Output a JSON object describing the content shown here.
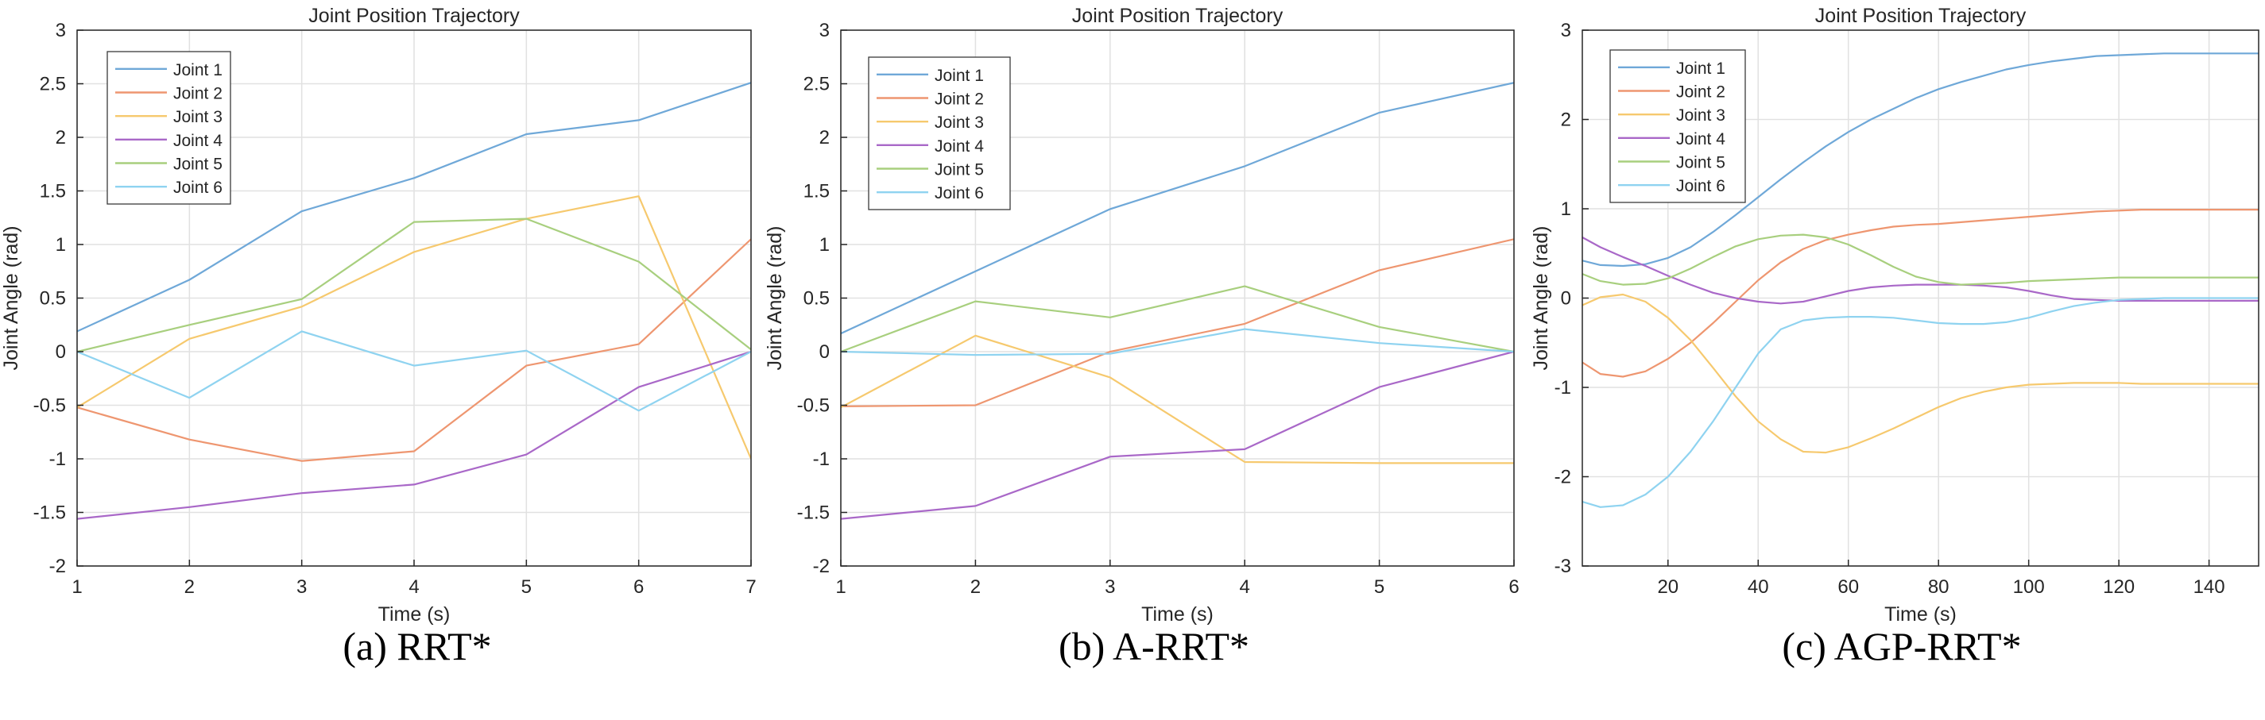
{
  "legend_labels": [
    "Joint 1",
    "Joint 2",
    "Joint 3",
    "Joint 4",
    "Joint 5",
    "Joint 6"
  ],
  "colors": {
    "joint1": "#6fa8d8",
    "joint2": "#ee9670",
    "joint3": "#f6c96e",
    "joint4": "#a968c8",
    "joint5": "#a8cf7e",
    "joint6": "#8fd3f0",
    "grid": "#e1e1e1",
    "axis": "#262626"
  },
  "chart_data": [
    {
      "type": "line",
      "caption": "(a) RRT*",
      "title": "Joint Position Trajectory",
      "xlabel": "Time (s)",
      "ylabel": "Joint Angle (rad)",
      "xlim": [
        1,
        7
      ],
      "ylim": [
        -2,
        3
      ],
      "xticks": [
        1,
        2,
        3,
        4,
        5,
        6,
        7
      ],
      "yticks": [
        -2,
        -1.5,
        -1,
        -0.5,
        0,
        0.5,
        1,
        1.5,
        2,
        2.5,
        3
      ],
      "grid": true,
      "legend_position": "top-left",
      "x": [
        1,
        2,
        3,
        4,
        5,
        6,
        7
      ],
      "series": [
        {
          "name": "Joint 1",
          "values": [
            0.19,
            0.67,
            1.31,
            1.62,
            2.03,
            2.16,
            2.51
          ]
        },
        {
          "name": "Joint 2",
          "values": [
            -0.52,
            -0.82,
            -1.02,
            -0.93,
            -0.13,
            0.07,
            1.05
          ]
        },
        {
          "name": "Joint 3",
          "values": [
            -0.52,
            0.12,
            0.42,
            0.93,
            1.24,
            1.45,
            -1.0
          ]
        },
        {
          "name": "Joint 4",
          "values": [
            -1.56,
            -1.45,
            -1.32,
            -1.24,
            -0.96,
            -0.33,
            0.0
          ]
        },
        {
          "name": "Joint 5",
          "values": [
            0.0,
            0.25,
            0.49,
            1.21,
            1.24,
            0.84,
            0.02
          ]
        },
        {
          "name": "Joint 6",
          "values": [
            0.0,
            -0.43,
            0.19,
            -0.13,
            0.01,
            -0.55,
            0.0
          ]
        }
      ]
    },
    {
      "type": "line",
      "caption": "(b) A-RRT*",
      "title": "Joint Position Trajectory",
      "xlabel": "Time (s)",
      "ylabel": "Joint Angle (rad)",
      "xlim": [
        1,
        6
      ],
      "ylim": [
        -2,
        3
      ],
      "xticks": [
        1,
        2,
        3,
        4,
        5,
        6
      ],
      "yticks": [
        -2,
        -1.5,
        -1,
        -0.5,
        0,
        0.5,
        1,
        1.5,
        2,
        2.5,
        3
      ],
      "grid": true,
      "legend_position": "top-left",
      "x": [
        1,
        2,
        3,
        4,
        5,
        6
      ],
      "series": [
        {
          "name": "Joint 1",
          "values": [
            0.17,
            0.75,
            1.33,
            1.73,
            2.23,
            2.51
          ]
        },
        {
          "name": "Joint 2",
          "values": [
            -0.51,
            -0.5,
            0.0,
            0.26,
            0.76,
            1.05
          ]
        },
        {
          "name": "Joint 3",
          "values": [
            -0.52,
            0.15,
            -0.24,
            -1.03,
            -1.04,
            -1.04
          ]
        },
        {
          "name": "Joint 4",
          "values": [
            -1.56,
            -1.44,
            -0.98,
            -0.91,
            -0.33,
            0.0
          ]
        },
        {
          "name": "Joint 5",
          "values": [
            0.0,
            0.47,
            0.32,
            0.61,
            0.23,
            0.0
          ]
        },
        {
          "name": "Joint 6",
          "values": [
            0.0,
            -0.03,
            -0.02,
            0.21,
            0.08,
            0.0
          ]
        }
      ]
    },
    {
      "type": "line",
      "caption": "(c) AGP-RRT*",
      "title": "Joint Position Trajectory",
      "xlabel": "Time (s)",
      "ylabel": "Joint Angle (rad)",
      "xlim": [
        1,
        151
      ],
      "ylim": [
        -3,
        3
      ],
      "xticks": [
        20,
        40,
        60,
        80,
        100,
        120,
        140
      ],
      "yticks": [
        -3,
        -2,
        -1,
        0,
        1,
        2,
        3
      ],
      "grid": true,
      "legend_position": "top-left",
      "x": [
        1,
        5,
        10,
        15,
        20,
        25,
        30,
        35,
        40,
        45,
        50,
        55,
        60,
        65,
        70,
        75,
        80,
        85,
        90,
        95,
        100,
        105,
        110,
        115,
        120,
        125,
        130,
        135,
        140,
        145,
        151
      ],
      "series": [
        {
          "name": "Joint 1",
          "values": [
            0.42,
            0.37,
            0.36,
            0.38,
            0.45,
            0.57,
            0.74,
            0.93,
            1.13,
            1.33,
            1.52,
            1.7,
            1.86,
            2.0,
            2.12,
            2.24,
            2.34,
            2.42,
            2.49,
            2.56,
            2.61,
            2.65,
            2.68,
            2.71,
            2.72,
            2.73,
            2.74,
            2.74,
            2.74,
            2.74,
            2.74
          ]
        },
        {
          "name": "Joint 2",
          "values": [
            -0.72,
            -0.85,
            -0.88,
            -0.82,
            -0.68,
            -0.5,
            -0.28,
            -0.04,
            0.2,
            0.4,
            0.55,
            0.65,
            0.71,
            0.76,
            0.8,
            0.82,
            0.83,
            0.85,
            0.87,
            0.89,
            0.91,
            0.93,
            0.95,
            0.97,
            0.98,
            0.99,
            0.99,
            0.99,
            0.99,
            0.99,
            0.99
          ]
        },
        {
          "name": "Joint 3",
          "values": [
            -0.08,
            0.01,
            0.04,
            -0.04,
            -0.22,
            -0.47,
            -0.78,
            -1.1,
            -1.38,
            -1.58,
            -1.72,
            -1.73,
            -1.67,
            -1.57,
            -1.46,
            -1.34,
            -1.22,
            -1.12,
            -1.05,
            -1.0,
            -0.97,
            -0.96,
            -0.95,
            -0.95,
            -0.95,
            -0.96,
            -0.96,
            -0.96,
            -0.96,
            -0.96,
            -0.96
          ]
        },
        {
          "name": "Joint 4",
          "values": [
            0.68,
            0.57,
            0.46,
            0.36,
            0.25,
            0.15,
            0.06,
            0.0,
            -0.04,
            -0.06,
            -0.04,
            0.02,
            0.08,
            0.12,
            0.14,
            0.15,
            0.15,
            0.15,
            0.14,
            0.12,
            0.08,
            0.03,
            -0.01,
            -0.02,
            -0.03,
            -0.03,
            -0.03,
            -0.03,
            -0.03,
            -0.03,
            -0.03
          ]
        },
        {
          "name": "Joint 5",
          "values": [
            0.27,
            0.19,
            0.15,
            0.16,
            0.22,
            0.33,
            0.46,
            0.58,
            0.66,
            0.7,
            0.71,
            0.68,
            0.6,
            0.48,
            0.35,
            0.24,
            0.18,
            0.15,
            0.16,
            0.17,
            0.19,
            0.2,
            0.21,
            0.22,
            0.23,
            0.23,
            0.23,
            0.23,
            0.23,
            0.23,
            0.23
          ]
        },
        {
          "name": "Joint 6",
          "values": [
            -2.28,
            -2.34,
            -2.32,
            -2.2,
            -2.0,
            -1.72,
            -1.38,
            -1.0,
            -0.62,
            -0.35,
            -0.25,
            -0.22,
            -0.21,
            -0.21,
            -0.22,
            -0.25,
            -0.28,
            -0.29,
            -0.29,
            -0.27,
            -0.22,
            -0.15,
            -0.09,
            -0.05,
            -0.02,
            -0.01,
            0.0,
            0.0,
            0.0,
            0.0,
            0.0
          ]
        }
      ]
    }
  ]
}
